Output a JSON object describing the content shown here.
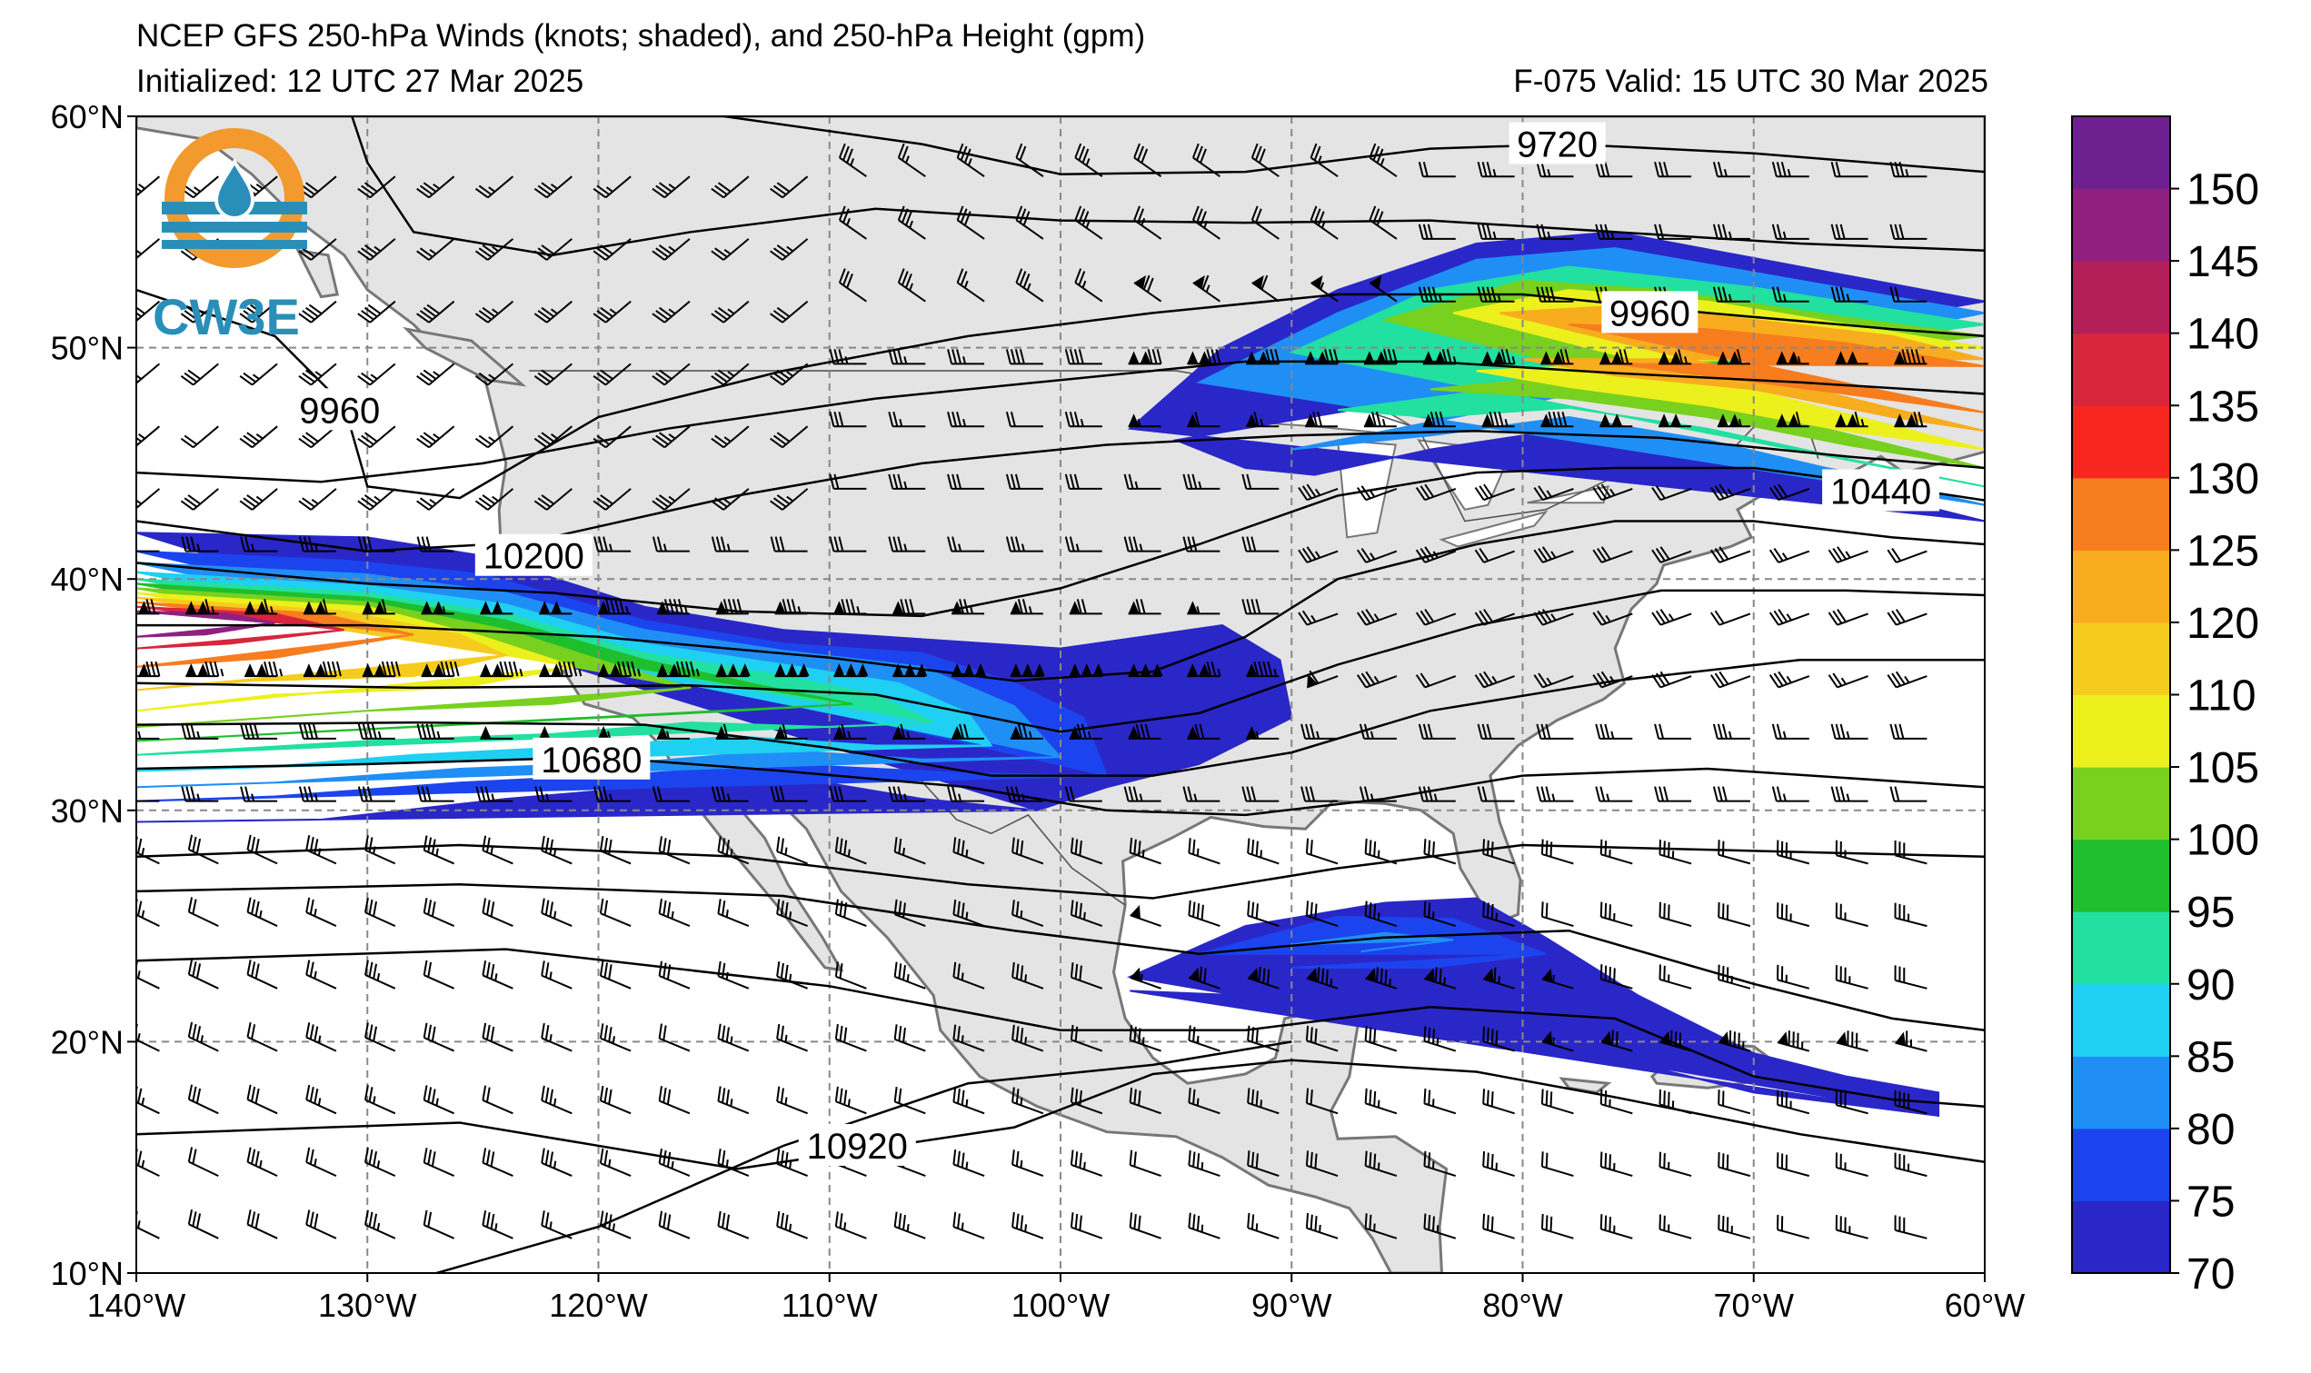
{
  "header": {
    "title": "NCEP GFS 250-hPa Winds (knots; shaded), and 250-hPa Height (gpm)",
    "initialized": "Initialized: 12 UTC 27 Mar 2025",
    "valid": "F-075  Valid: 15 UTC 30 Mar 2025"
  },
  "logo": {
    "text": "CW3E",
    "colors": {
      "ring": "#f29a2e",
      "wave": "#2a8fb8"
    }
  },
  "map": {
    "lon_range": [
      -140,
      -60
    ],
    "lat_range": [
      10,
      60
    ],
    "lat_labels": [
      "60°N",
      "50°N",
      "40°N",
      "30°N",
      "20°N",
      "10°N"
    ],
    "lon_labels": [
      "140°W",
      "130°W",
      "120°W",
      "110°W",
      "100°W",
      "90°W",
      "80°W",
      "70°W",
      "60°W"
    ],
    "gridlines": true,
    "land_color": "#e4e4e4",
    "ocean_color": "#ffffff",
    "contour_labels": [
      {
        "text": "9720",
        "lon": -78.5,
        "lat": 58.8
      },
      {
        "text": "9960",
        "lon": -131.2,
        "lat": 47.3
      },
      {
        "text": "9960",
        "lon": -74.5,
        "lat": 51.5
      },
      {
        "text": "10200",
        "lon": -122.8,
        "lat": 41.0
      },
      {
        "text": "10440",
        "lon": -64.5,
        "lat": 43.8
      },
      {
        "text": "10680",
        "lon": -120.3,
        "lat": 32.2
      },
      {
        "text": "10920",
        "lon": -108.8,
        "lat": 15.5
      }
    ]
  },
  "colorbar": {
    "labels": [
      "150",
      "145",
      "140",
      "135",
      "130",
      "125",
      "120",
      "110",
      "105",
      "100",
      "95",
      "90",
      "85",
      "80",
      "75",
      "70"
    ],
    "colors": [
      "#2a27c8",
      "#1c44ee",
      "#1f8ff6",
      "#1fd0f2",
      "#22e0a0",
      "#1fbe2d",
      "#78d11e",
      "#ecf01d",
      "#f5cc1d",
      "#f8ad1e",
      "#f77d1e",
      "#f7271f",
      "#d8253c",
      "#b41e59",
      "#902080",
      "#6e2090"
    ]
  }
}
